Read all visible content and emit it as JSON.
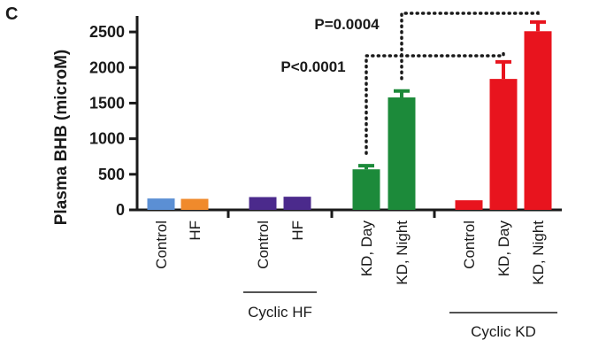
{
  "panel_label": "C",
  "chart_data": {
    "type": "bar",
    "ylabel": "Plasma BHB (microM)",
    "ylim": [
      0,
      2700
    ],
    "yticks": [
      0,
      500,
      1000,
      1500,
      2000,
      2500
    ],
    "categories": [
      "Control",
      "HF",
      "Control",
      "HF",
      "KD, Day",
      "KD, Night",
      "Control",
      "KD, Day",
      "KD, Night"
    ],
    "values": [
      160,
      155,
      180,
      185,
      570,
      1580,
      135,
      1840,
      2510
    ],
    "errors": [
      0,
      0,
      0,
      0,
      50,
      90,
      0,
      240,
      130
    ],
    "colors": [
      "#5b8fd4",
      "#f08a2c",
      "#4b2a8c",
      "#4b2a8c",
      "#1c8a3a",
      "#1c8a3a",
      "#e8141e",
      "#e8141e",
      "#e8141e"
    ],
    "groups": [
      {
        "label": "",
        "members": [
          0,
          1
        ]
      },
      {
        "label": "Cyclic HF",
        "members": [
          2,
          3
        ]
      },
      {
        "label": "",
        "members": [
          4,
          5
        ]
      },
      {
        "label": "Cyclic KD",
        "members": [
          6,
          7,
          8
        ]
      }
    ],
    "annotations": [
      {
        "text": "P<0.0001",
        "from": 4,
        "to": 7
      },
      {
        "text": "P=0.0004",
        "from": 5,
        "to": 8
      }
    ]
  }
}
